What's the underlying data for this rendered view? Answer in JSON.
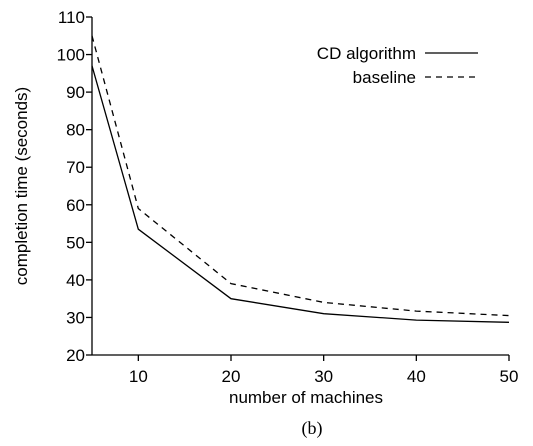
{
  "chart_data": {
    "type": "line",
    "xlabel": "number of machines",
    "ylabel": "completion time (seconds)",
    "caption": "(b)",
    "xlim": [
      5,
      50
    ],
    "ylim": [
      20,
      110
    ],
    "x_ticks": [
      10,
      20,
      30,
      40,
      50
    ],
    "y_ticks": [
      20,
      30,
      40,
      50,
      60,
      70,
      80,
      90,
      100,
      110
    ],
    "grid": false,
    "legend_position": "top-right",
    "series": [
      {
        "name": "CD algorithm",
        "style": "solid",
        "x": [
          5,
          10,
          20,
          30,
          40,
          50
        ],
        "y": [
          97,
          53.5,
          35,
          31,
          29.3,
          28.7
        ]
      },
      {
        "name": "baseline",
        "style": "dashed",
        "x": [
          5,
          10,
          20,
          30,
          40,
          50
        ],
        "y": [
          105,
          59,
          39,
          34,
          31.7,
          30.5
        ]
      }
    ]
  }
}
